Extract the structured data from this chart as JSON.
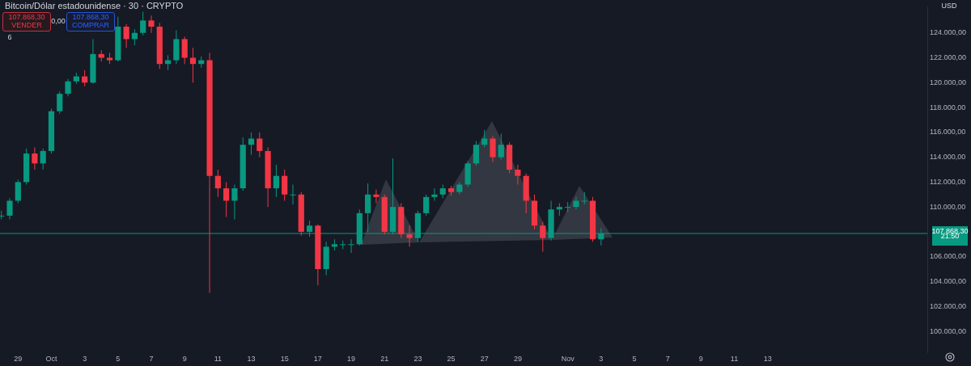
{
  "chart_data": {
    "type": "candlestick",
    "title": "Bitcoin/Dólar estadounidense · 30 · CRYPTO",
    "x": [
      "--09-28T00:00",
      "--09-28T12:00",
      "--09-29T00:00",
      "--09-29T12:00",
      "--09-30T00:00",
      "--09-30T12:00",
      "--10-01T00:00",
      "--10-01T12:00",
      "--10-02T00:00",
      "--10-02T12:00",
      "--10-03T00:00",
      "--10-03T12:00",
      "--10-04T00:00",
      "--10-04T12:00",
      "--10-05T00:00",
      "--10-05T12:00",
      "--10-06T00:00",
      "--10-06T12:00",
      "--10-07T00:00",
      "--10-07T12:00",
      "--10-08T00:00",
      "--10-08T12:00",
      "--10-09T00:00",
      "--10-09T12:00",
      "--10-10T00:00",
      "--10-10T12:00",
      "--10-11T00:00",
      "--10-11T12:00",
      "--10-12T00:00",
      "--10-12T12:00",
      "--10-13T00:00",
      "--10-13T12:00",
      "--10-14T00:00",
      "--10-14T12:00",
      "--10-15T00:00",
      "--10-15T12:00",
      "--10-16T00:00",
      "--10-16T12:00",
      "--10-17T00:00",
      "--10-17T12:00",
      "--10-18T00:00",
      "--10-18T12:00",
      "--10-19T00:00",
      "--10-19T12:00",
      "--10-20T00:00",
      "--10-20T12:00",
      "--10-21T00:00",
      "--10-21T12:00",
      "--10-22T00:00",
      "--10-22T12:00",
      "--10-23T00:00",
      "--10-23T12:00",
      "--10-24T00:00",
      "--10-24T12:00",
      "--10-25T00:00",
      "--10-25T12:00",
      "--10-26T00:00",
      "--10-26T12:00",
      "--10-27T00:00",
      "--10-27T12:00",
      "--10-28T00:00",
      "--10-28T12:00",
      "--10-29T00:00",
      "--10-29T12:00",
      "--10-30T00:00",
      "--10-30T12:00",
      "--10-31T00:00",
      "--10-31T12:00",
      "--11-01T00:00",
      "--11-01T12:00",
      "--11-02T00:00",
      "--11-02T12:00",
      "--11-03T00:00"
    ],
    "ohlc": [
      [
        109300,
        109700,
        109000,
        109300
      ],
      [
        109300,
        110700,
        109000,
        110500
      ],
      [
        110500,
        112200,
        110300,
        112000
      ],
      [
        112000,
        114700,
        111800,
        114300
      ],
      [
        114300,
        114800,
        113000,
        113500
      ],
      [
        113500,
        114700,
        113000,
        114500
      ],
      [
        114500,
        117900,
        114300,
        117700
      ],
      [
        117700,
        119300,
        117500,
        119100
      ],
      [
        119100,
        120300,
        118900,
        120100
      ],
      [
        120100,
        120800,
        119900,
        120500
      ],
      [
        120500,
        121000,
        119700,
        120000
      ],
      [
        120000,
        123500,
        119900,
        122300
      ],
      [
        122300,
        122600,
        121700,
        122000
      ],
      [
        122000,
        122400,
        121500,
        121800
      ],
      [
        121800,
        125300,
        121700,
        124500
      ],
      [
        124500,
        124700,
        122800,
        123500
      ],
      [
        123500,
        124300,
        123000,
        124000
      ],
      [
        124000,
        125700,
        123800,
        125000
      ],
      [
        125000,
        125400,
        124000,
        124500
      ],
      [
        124500,
        124800,
        121100,
        121500
      ],
      [
        121500,
        122200,
        121000,
        121800
      ],
      [
        121800,
        124200,
        121500,
        123500
      ],
      [
        123500,
        123700,
        121500,
        122000
      ],
      [
        122000,
        122800,
        120000,
        121500
      ],
      [
        121500,
        122100,
        121200,
        121800
      ],
      [
        121800,
        122400,
        103100,
        112500
      ],
      [
        112500,
        113000,
        110800,
        111500
      ],
      [
        111500,
        112000,
        109200,
        110500
      ],
      [
        110500,
        111800,
        109000,
        111500
      ],
      [
        111500,
        115600,
        111300,
        115000
      ],
      [
        115000,
        116000,
        114200,
        115500
      ],
      [
        115500,
        116000,
        114000,
        114500
      ],
      [
        114500,
        114800,
        110000,
        111500
      ],
      [
        111500,
        113400,
        110800,
        112500
      ],
      [
        112500,
        113000,
        110500,
        111000
      ],
      [
        111000,
        111800,
        110200,
        111000
      ],
      [
        111000,
        111200,
        107700,
        108000
      ],
      [
        108000,
        108900,
        107600,
        108500
      ],
      [
        108500,
        108600,
        103700,
        105000
      ],
      [
        105000,
        107200,
        104500,
        106800
      ],
      [
        106800,
        107400,
        106500,
        107000
      ],
      [
        107000,
        107300,
        106600,
        107000
      ],
      [
        107000,
        107400,
        106300,
        107000
      ],
      [
        107000,
        109800,
        106900,
        109500
      ],
      [
        109500,
        111900,
        108000,
        111000
      ],
      [
        111000,
        111400,
        110300,
        110800
      ],
      [
        110800,
        111000,
        107800,
        108000
      ],
      [
        108000,
        113900,
        107800,
        110000
      ],
      [
        110000,
        110300,
        107500,
        107800
      ],
      [
        107800,
        108500,
        106800,
        107500
      ],
      [
        107500,
        109700,
        107200,
        109500
      ],
      [
        109500,
        111000,
        109300,
        110800
      ],
      [
        110800,
        111500,
        110500,
        111000
      ],
      [
        111000,
        111800,
        110700,
        111500
      ],
      [
        111500,
        111700,
        110900,
        111200
      ],
      [
        111200,
        112000,
        111000,
        111800
      ],
      [
        111800,
        113700,
        111600,
        113500
      ],
      [
        113500,
        115300,
        113300,
        115000
      ],
      [
        115000,
        116200,
        114800,
        115500
      ],
      [
        115500,
        115700,
        113600,
        114000
      ],
      [
        114000,
        115900,
        113800,
        115000
      ],
      [
        115000,
        115200,
        112700,
        113000
      ],
      [
        113000,
        113400,
        111800,
        112500
      ],
      [
        112500,
        112700,
        109500,
        110500
      ],
      [
        110500,
        111000,
        108200,
        108500
      ],
      [
        108500,
        108800,
        106400,
        107500
      ],
      [
        107500,
        110500,
        107300,
        109800
      ],
      [
        109800,
        110300,
        109300,
        110000
      ],
      [
        110000,
        110400,
        109600,
        110000
      ],
      [
        110000,
        110800,
        109800,
        110500
      ],
      [
        110500,
        111200,
        110200,
        110500
      ],
      [
        110500,
        110800,
        107200,
        107400
      ],
      [
        107400,
        108300,
        106900,
        107868.3
      ]
    ],
    "xlim": [
      "--09-27T22:00",
      "--11-22T14:00"
    ],
    "xticks": [
      {
        "value": "--09-29",
        "label": "29"
      },
      {
        "value": "--10-01",
        "label": "Oct"
      },
      {
        "value": "--10-03",
        "label": "3"
      },
      {
        "value": "--10-05",
        "label": "5"
      },
      {
        "value": "--10-07",
        "label": "7"
      },
      {
        "value": "--10-09",
        "label": "9"
      },
      {
        "value": "--10-11",
        "label": "11"
      },
      {
        "value": "--10-13",
        "label": "13"
      },
      {
        "value": "--10-15",
        "label": "15"
      },
      {
        "value": "--10-17",
        "label": "17"
      },
      {
        "value": "--10-19",
        "label": "19"
      },
      {
        "value": "--10-21",
        "label": "21"
      },
      {
        "value": "--10-23",
        "label": "23"
      },
      {
        "value": "--10-25",
        "label": "25"
      },
      {
        "value": "--10-27",
        "label": "27"
      },
      {
        "value": "--10-29",
        "label": "29"
      },
      {
        "value": "--11-01",
        "label": "Nov"
      },
      {
        "value": "--11-03",
        "label": "3"
      },
      {
        "value": "--11-05",
        "label": "5"
      },
      {
        "value": "--11-07",
        "label": "7"
      },
      {
        "value": "--11-09",
        "label": "9"
      },
      {
        "value": "--11-11",
        "label": "11"
      },
      {
        "value": "--11-13",
        "label": "13"
      }
    ],
    "ylim": [
      98300,
      126100
    ],
    "yticks": [
      {
        "value": 100000,
        "label": "100.000,00"
      },
      {
        "value": 102000,
        "label": "102.000,00"
      },
      {
        "value": 104000,
        "label": "104.000,00"
      },
      {
        "value": 106000,
        "label": "106.000,00"
      },
      {
        "value": 108000,
        "label": null
      },
      {
        "value": 110000,
        "label": "110.000,00"
      },
      {
        "value": 112000,
        "label": "112.000,00"
      },
      {
        "value": 114000,
        "label": "114.000,00"
      },
      {
        "value": 116000,
        "label": "116.000,00"
      },
      {
        "value": 118000,
        "label": "118.000,00"
      },
      {
        "value": 120000,
        "label": "120.000,00"
      },
      {
        "value": 122000,
        "label": "122.000,00"
      },
      {
        "value": 124000,
        "label": "124.000,00"
      }
    ],
    "ref_lines": [
      {
        "axis": "y",
        "value": 107868.3,
        "label": "107.868,30",
        "color": "#089981"
      }
    ],
    "annotations": [
      "107.868,30",
      "VENDER",
      "0,00",
      "107.868,30",
      "COMPRAR",
      "6",
      "USD",
      "21:50"
    ],
    "grid": false,
    "legend": false
  }
}
